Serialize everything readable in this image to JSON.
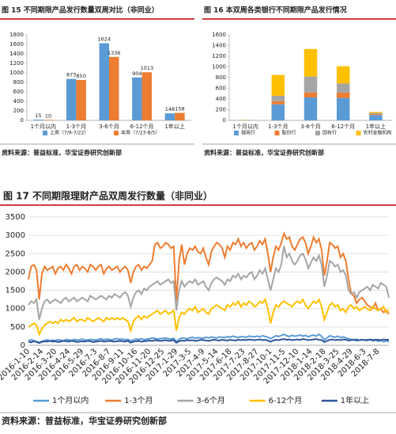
{
  "chart_data": [
    {
      "type": "bar",
      "title": "图 15 不同期限产品发行数量双周对比（非同业）",
      "categories": [
        "1个月以内",
        "1-3个月",
        "3-6个月",
        "6-12个月",
        "1年以上"
      ],
      "series": [
        {
          "name": "上周（7/9-7/22）",
          "color": "#5b9bd5",
          "values": [
            15,
            873,
            1624,
            904,
            148
          ]
        },
        {
          "name": "本周（7/23-8/5）",
          "color": "#ed7d31",
          "values": [
            10,
            850,
            1336,
            1013,
            158
          ]
        }
      ],
      "ylim": [
        0,
        1800
      ],
      "yticks": [
        0,
        200,
        400,
        600,
        800,
        1000,
        1200,
        1400,
        1600,
        1800
      ],
      "grid": false,
      "source": "资料来源：普益标准，华宝证券研究创新部"
    },
    {
      "type": "stacked_bar",
      "title": "图 16 本双周各类银行不同期限产品发行情况",
      "categories": [
        "1个月以内",
        "1-3个月",
        "3-6个月",
        "6-12个月",
        "1年以上"
      ],
      "series": [
        {
          "name": "城商行",
          "color": "#5b9bd5",
          "values": [
            5,
            300,
            430,
            420,
            100
          ]
        },
        {
          "name": "股份行",
          "color": "#ed7d31",
          "values": [
            0,
            60,
            90,
            100,
            20
          ]
        },
        {
          "name": "国有行",
          "color": "#a5a5a5",
          "values": [
            0,
            100,
            300,
            170,
            20
          ]
        },
        {
          "name": "农村金融机构",
          "color": "#ffc000",
          "values": [
            5,
            390,
            516,
            323,
            18
          ]
        }
      ],
      "ylim": [
        0,
        1600
      ],
      "yticks": [
        0,
        200,
        400,
        600,
        800,
        1000,
        1200,
        1400,
        1600
      ],
      "grid": false,
      "source": "资料来源：普益标准，华宝证券研究创新部"
    },
    {
      "type": "line",
      "title": "图 17 不同期限理财产品双周发行数量（非同业）",
      "categories": [
        "2016-1-10",
        null,
        null,
        null,
        null,
        "2016-2-14",
        null,
        null,
        null,
        null,
        "2016-3-20",
        null,
        null,
        null,
        null,
        "2016-4-24",
        null,
        null,
        null,
        null,
        "2016-5-29",
        null,
        null,
        null,
        null,
        "2016-7-3",
        null,
        null,
        null,
        null,
        "2016-8-7",
        null,
        null,
        null,
        null,
        "2016-9-11",
        null,
        null,
        null,
        null,
        "2016-10-16",
        null,
        null,
        null,
        null,
        "2016-11-20",
        null,
        null,
        null,
        null,
        "2016-12-25",
        null,
        null,
        null,
        null,
        "2017-1-29",
        null,
        null,
        null,
        null,
        "2017-3-5",
        null,
        null,
        null,
        null,
        "2017-4-9",
        null,
        null,
        null,
        null,
        "2017-5-14",
        null,
        null,
        null,
        null,
        "2017-6-18",
        null,
        null,
        null,
        null,
        "2017-7-23",
        null,
        null,
        null,
        null,
        "2017-8-27",
        null,
        null,
        null,
        null,
        "2017-10-1",
        null,
        null,
        null,
        null,
        "2017-11-5",
        null,
        null,
        null,
        null,
        "2017-12-10",
        null,
        null,
        null,
        null,
        "2018-1-14",
        null,
        null,
        null,
        null,
        "2018-2-18",
        null,
        null,
        null,
        null,
        "2018-3-25",
        null,
        null,
        null,
        null,
        "2018-4-29",
        null,
        null,
        null,
        null,
        "2018-6-3",
        null,
        null,
        null,
        null,
        "2018-7-8",
        null,
        null,
        null,
        null
      ],
      "series": [
        {
          "name": "1个月以内",
          "color": "#5b9bd5",
          "values": [
            120,
            150,
            130,
            100,
            80,
            110,
            130,
            150,
            120,
            140,
            130,
            150,
            140,
            120,
            160,
            150,
            130,
            160,
            140,
            150,
            170,
            150,
            140,
            160,
            150,
            140,
            160,
            180,
            150,
            170,
            160,
            150,
            170,
            180,
            160,
            170,
            150,
            160,
            120,
            150,
            170,
            160,
            180,
            150,
            170,
            180,
            200,
            190,
            170,
            180,
            190,
            200,
            180,
            170,
            190,
            100,
            160,
            200,
            190,
            180,
            200,
            220,
            190,
            210,
            200,
            190,
            220,
            200,
            230,
            210,
            200,
            230,
            220,
            210,
            240,
            220,
            250,
            230,
            210,
            240,
            230,
            220,
            250,
            240,
            230,
            250,
            230,
            260,
            240,
            220,
            180,
            220,
            260,
            240,
            270,
            300,
            260,
            240,
            270,
            250,
            260,
            280,
            250,
            270,
            230,
            260,
            280,
            250,
            300,
            240,
            150,
            200,
            260,
            240,
            220,
            250,
            210,
            230,
            200,
            180,
            160,
            150,
            170,
            140,
            150,
            140,
            130,
            150,
            120,
            140,
            110,
            130,
            100,
            120,
            100
          ]
        },
        {
          "name": "1-3个月",
          "color": "#ed7d31",
          "values": [
            1800,
            2150,
            2200,
            2050,
            1250,
            1950,
            2150,
            2050,
            2100,
            2150,
            1950,
            2100,
            2150,
            2050,
            2200,
            2100,
            1950,
            2150,
            2200,
            2050,
            2150,
            2100,
            2000,
            2200,
            2150,
            2050,
            2150,
            2200,
            1950,
            2100,
            2150,
            2050,
            2100,
            2150,
            2000,
            2100,
            2150,
            2050,
            1700,
            2000,
            2150,
            2200,
            2050,
            2150,
            2100,
            2200,
            2300,
            2750,
            2800,
            2650,
            2700,
            2800,
            2750,
            2650,
            2700,
            1200,
            2300,
            2750,
            2200,
            2500,
            2650,
            2600,
            2700,
            2550,
            2500,
            2650,
            2400,
            2200,
            2550,
            2700,
            2800,
            2750,
            2650,
            2400,
            2700,
            2600,
            2800,
            2750,
            2900,
            2700,
            2800,
            2650,
            2750,
            2800,
            2600,
            2700,
            2850,
            2750,
            2900,
            2500,
            2000,
            2400,
            2700,
            2600,
            2800,
            3050,
            2900,
            2950,
            2700,
            2600,
            2750,
            2900,
            2950,
            2800,
            2500,
            2700,
            2950,
            2800,
            2900,
            2600,
            1900,
            2300,
            2800,
            2750,
            2650,
            2700,
            2400,
            2500,
            2300,
            1800,
            1400,
            1350,
            1150,
            1250,
            1300,
            1200,
            1100,
            1050,
            1000,
            1150,
            950,
            1000,
            900,
            950,
            850
          ]
        },
        {
          "name": "3-6个月",
          "color": "#a5a5a5",
          "values": [
            1100,
            1200,
            1150,
            1250,
            700,
            1000,
            1200,
            1250,
            1150,
            1200,
            1250,
            1200,
            1150,
            1250,
            1300,
            1200,
            1250,
            1300,
            1200,
            1250,
            1300,
            1250,
            1200,
            1350,
            1300,
            1250,
            1300,
            1350,
            1300,
            1250,
            1350,
            1300,
            1400,
            1350,
            1300,
            1400,
            1450,
            1350,
            1050,
            1300,
            1450,
            1500,
            1400,
            1550,
            1500,
            1600,
            1650,
            1700,
            1750,
            1650,
            1700,
            1750,
            1800,
            1700,
            1750,
            950,
            1500,
            1750,
            1600,
            1700,
            1750,
            1700,
            1800,
            1650,
            1700,
            1750,
            1600,
            1500,
            1700,
            1800,
            1850,
            1800,
            1750,
            1650,
            1800,
            1750,
            1900,
            1850,
            1950,
            1800,
            1900,
            1850,
            1950,
            2000,
            1800,
            1900,
            2050,
            1950,
            2100,
            1800,
            1500,
            1800,
            2100,
            2000,
            2200,
            2700,
            2400,
            2500,
            2300,
            2200,
            2300,
            2450,
            2500,
            2350,
            2100,
            2250,
            2400,
            2300,
            2450,
            2200,
            1600,
            1900,
            2300,
            2250,
            2150,
            2200,
            2000,
            2050,
            1900,
            1500,
            1400,
            1450,
            1300,
            1450,
            1500,
            1550,
            1600,
            1500,
            1650,
            1600,
            1550,
            1700,
            1650,
            1600,
            1300
          ]
        },
        {
          "name": "6-12个月",
          "color": "#ffc000",
          "values": [
            500,
            550,
            600,
            550,
            300,
            450,
            550,
            600,
            650,
            600,
            650,
            600,
            700,
            650,
            700,
            650,
            700,
            750,
            650,
            700,
            700,
            650,
            750,
            700,
            650,
            700,
            750,
            700,
            650,
            750,
            700,
            750,
            700,
            750,
            700,
            750,
            700,
            650,
            400,
            650,
            750,
            800,
            700,
            800,
            750,
            800,
            850,
            900,
            950,
            850,
            900,
            950,
            850,
            900,
            950,
            400,
            750,
            900,
            850,
            950,
            1000,
            950,
            1050,
            900,
            950,
            1000,
            900,
            850,
            1000,
            1050,
            1100,
            1050,
            1000,
            950,
            1100,
            1050,
            1150,
            1100,
            1200,
            1050,
            1150,
            1100,
            1200,
            1150,
            1050,
            1100,
            1200,
            1150,
            1250,
            1000,
            600,
            900,
            1100,
            1050,
            1150,
            1200,
            1150,
            1100,
            1050,
            1150,
            1200,
            1150,
            1250,
            1100,
            1000,
            1100,
            1200,
            1150,
            1250,
            1050,
            700,
            900,
            1100,
            1150,
            1050,
            1100,
            950,
            1000,
            900,
            1050,
            1100,
            1000,
            1050,
            950,
            1000,
            1050,
            1000,
            950,
            1050,
            1000,
            950,
            1000,
            1050,
            900,
            950
          ]
        },
        {
          "name": "1年以上",
          "color": "#2f5597",
          "values": [
            100,
            80,
            110,
            90,
            60,
            90,
            110,
            100,
            120,
            100,
            110,
            90,
            100,
            120,
            110,
            100,
            120,
            110,
            90,
            100,
            110,
            100,
            120,
            110,
            90,
            100,
            110,
            120,
            100,
            110,
            120,
            110,
            100,
            110,
            120,
            110,
            100,
            120,
            70,
            100,
            110,
            120,
            100,
            110,
            120,
            130,
            120,
            140,
            130,
            120,
            130,
            140,
            120,
            130,
            140,
            70,
            110,
            130,
            120,
            140,
            130,
            140,
            120,
            130,
            150,
            140,
            130,
            120,
            140,
            150,
            140,
            130,
            150,
            140,
            130,
            150,
            140,
            130,
            150,
            140,
            150,
            140,
            160,
            150,
            140,
            150,
            160,
            140,
            150,
            130,
            100,
            130,
            150,
            140,
            160,
            170,
            150,
            160,
            140,
            150,
            160,
            150,
            170,
            160,
            140,
            150,
            160,
            170,
            150,
            140,
            90,
            120,
            150,
            160,
            140,
            150,
            140,
            160,
            150,
            130,
            140,
            150,
            130,
            140,
            150,
            140,
            150,
            160,
            140,
            150,
            150,
            140,
            160,
            150,
            150
          ]
        }
      ],
      "ylim": [
        0,
        3500
      ],
      "yticks": [
        0,
        500,
        1000,
        1500,
        2000,
        2500,
        3000,
        3500
      ],
      "grid": true,
      "source": "资料来源：普益标准，华宝证券研究创新部"
    }
  ]
}
